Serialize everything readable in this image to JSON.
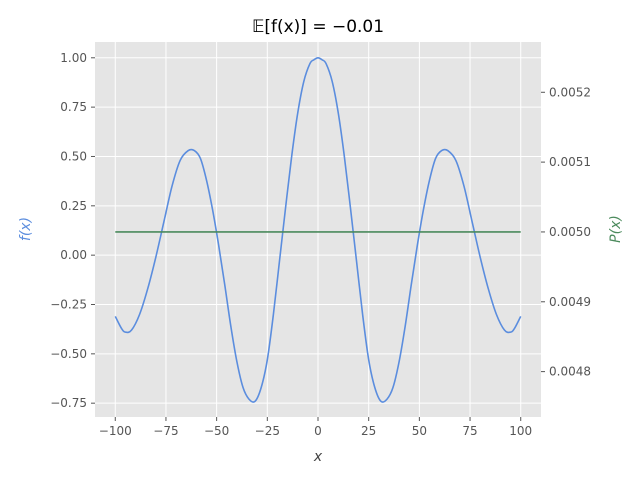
{
  "chart_data": {
    "type": "line",
    "title": "𝔼[f(x)] = −0.01",
    "xlabel": "x",
    "ylabel_left": "f(x)",
    "ylabel_right": "P(x)",
    "xlim": [
      -110,
      110
    ],
    "ylim_left": [
      -0.82,
      1.08
    ],
    "ylim_right": [
      0.004735,
      0.005272
    ],
    "x_ticks": [
      -100,
      -75,
      -50,
      -25,
      0,
      25,
      50,
      75,
      100
    ],
    "x_tick_labels": [
      "−100",
      "−75",
      "−50",
      "−25",
      "0",
      "25",
      "50",
      "75",
      "100"
    ],
    "y_left_ticks": [
      -0.75,
      -0.5,
      -0.25,
      0.0,
      0.25,
      0.5,
      0.75,
      1.0
    ],
    "y_left_tick_labels": [
      "−0.75",
      "−0.50",
      "−0.25",
      "0.00",
      "0.25",
      "0.50",
      "0.75",
      "1.00"
    ],
    "y_right_ticks": [
      0.0048,
      0.0049,
      0.005,
      0.0051,
      0.0052
    ],
    "y_right_tick_labels": [
      "0.0048",
      "0.0049",
      "0.0050",
      "0.0051",
      "0.0052"
    ],
    "grid": true,
    "background": "#e5e5e5",
    "series": [
      {
        "axis": "left",
        "color": "#5b8dde",
        "x": [
          -100,
          -97,
          -95,
          -92,
          -88,
          -84,
          -80,
          -76,
          -72,
          -68,
          -64,
          -61,
          -58,
          -55,
          -52,
          -49,
          -46,
          -43,
          -40,
          -37,
          -34,
          -31,
          -28,
          -25,
          -22,
          -19,
          -16,
          -13,
          -10,
          -7,
          -4,
          -2,
          0,
          2,
          4,
          7,
          10,
          13,
          16,
          19,
          22,
          25,
          28,
          31,
          34,
          37,
          40,
          43,
          46,
          49,
          52,
          55,
          58,
          61,
          64,
          68,
          72,
          76,
          80,
          84,
          88,
          92,
          95,
          97,
          100
        ],
        "y": [
          -0.31,
          -0.37,
          -0.39,
          -0.38,
          -0.3,
          -0.17,
          -0.01,
          0.17,
          0.35,
          0.48,
          0.53,
          0.53,
          0.49,
          0.38,
          0.23,
          0.05,
          -0.15,
          -0.36,
          -0.54,
          -0.67,
          -0.73,
          -0.74,
          -0.67,
          -0.53,
          -0.3,
          -0.03,
          0.24,
          0.5,
          0.72,
          0.88,
          0.97,
          0.99,
          1.0,
          0.99,
          0.97,
          0.88,
          0.72,
          0.5,
          0.24,
          -0.03,
          -0.3,
          -0.53,
          -0.67,
          -0.74,
          -0.73,
          -0.67,
          -0.54,
          -0.36,
          -0.15,
          0.05,
          0.23,
          0.38,
          0.49,
          0.53,
          0.53,
          0.48,
          0.35,
          0.17,
          -0.01,
          -0.17,
          -0.3,
          -0.38,
          -0.39,
          -0.37,
          -0.31
        ]
      },
      {
        "axis": "right",
        "color": "#4b8a5c",
        "x": [
          -100,
          100
        ],
        "y": [
          0.005,
          0.005
        ]
      }
    ]
  }
}
